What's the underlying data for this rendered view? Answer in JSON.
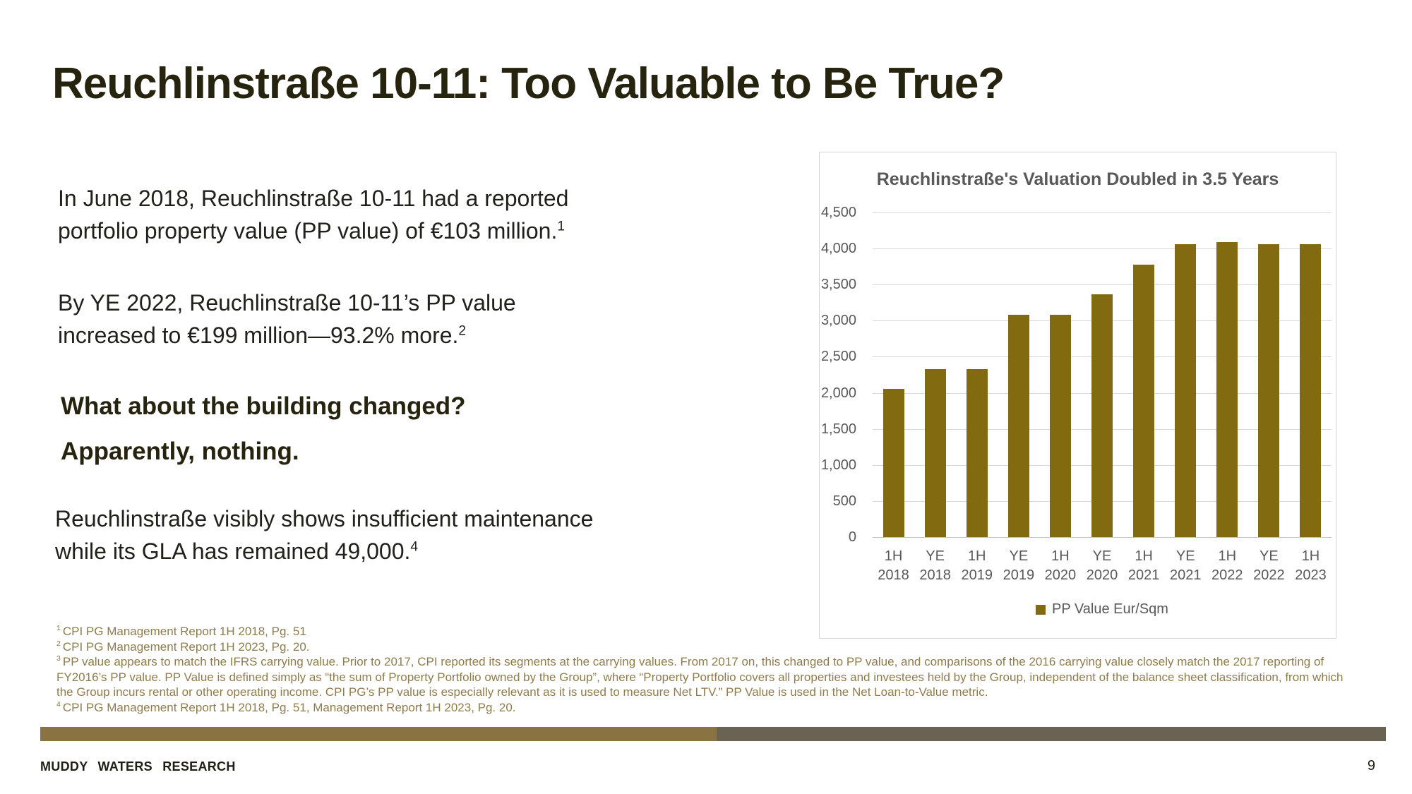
{
  "slide": {
    "title": "Reuchlinstraße 10-11: Too Valuable to Be True?",
    "paragraphs": [
      {
        "text": "In June 2018, Reuchlinstraße 10-11 had a reported portfolio property value (PP value) of €103 million.",
        "sup": "1"
      },
      {
        "text": "By YE 2022, Reuchlinstraße 10-11’s PP value increased to €199 million—93.2% more.",
        "sup": "2"
      },
      {
        "text": "Reuchlinstraße visibly shows insufficient maintenance while its GLA has remained 49,000.",
        "sup": "4"
      }
    ],
    "headings": [
      "What about the building changed?",
      "Apparently, nothing."
    ],
    "footnotes": [
      {
        "sup": "1",
        "text": "CPI PG Management Report 1H 2018, Pg. 51"
      },
      {
        "sup": "2",
        "text": "CPI PG Management Report 1H 2023, Pg. 20."
      },
      {
        "sup": "3",
        "text": "PP value appears to match the IFRS carrying value.  Prior to 2017, CPI reported its segments at the carrying values. From 2017 on, this changed to PP value, and comparisons of the 2016 carrying value closely match the 2017 reporting of FY2016’s PP value. PP Value is defined simply as “the sum of Property Portfolio owned by the Group”, where “Property Portfolio covers all properties and investees held by the Group, independent of the balance sheet classification, from which the Group incurs rental or other operating income. CPI PG’s PP value is especially relevant as it is used to measure Net LTV.”  PP Value is used in the Net Loan-to-Value metric."
      },
      {
        "sup": "4",
        "text": "CPI PG Management Report 1H 2018, Pg. 51, Management Report 1H 2023, Pg. 20."
      }
    ],
    "footer": {
      "brand": "MUDDY WATERS RESEARCH",
      "page_number": "9"
    }
  },
  "chart_data": {
    "type": "bar",
    "title": "Reuchlinstraße's Valuation Doubled in 3.5 Years",
    "categories": [
      "1H 2018",
      "YE 2018",
      "1H 2019",
      "YE 2019",
      "1H 2020",
      "YE 2020",
      "1H 2021",
      "YE 2021",
      "1H 2022",
      "YE 2022",
      "1H 2023"
    ],
    "values": [
      2050,
      2330,
      2330,
      3080,
      3080,
      3370,
      3780,
      4060,
      4090,
      4060,
      4060
    ],
    "legend": "PP Value Eur/Sqm",
    "xlabel": "",
    "ylabel": "",
    "ylim": [
      0,
      4500
    ],
    "ytick_interval": 500,
    "grid": "horizontal",
    "legend_position": "bottom"
  },
  "colors": {
    "bar_gold": "#826A10",
    "accent_gold": "#8A7342",
    "footer_gray": "#6A6252",
    "footnote_gold": "#8E7C4D",
    "chart_text_gray": "#595959",
    "title_ink": "#26230F",
    "body_ink": "#21211B"
  }
}
